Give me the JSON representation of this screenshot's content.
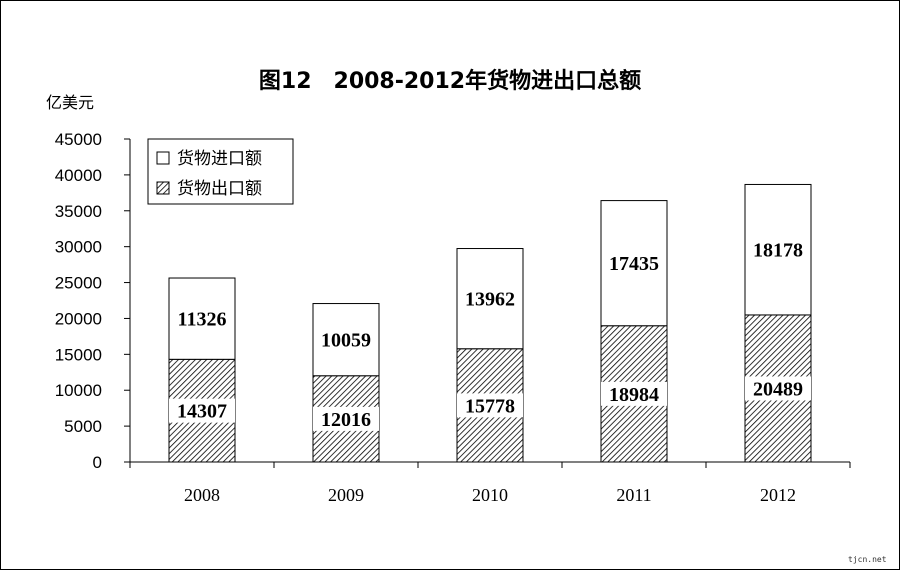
{
  "chart_data": {
    "type": "bar",
    "stacked": true,
    "title": "图12　2008-2012年货物进出口总额",
    "ylabel": "亿美元",
    "xlabel": "",
    "categories": [
      "2008",
      "2009",
      "2010",
      "2011",
      "2012"
    ],
    "ylim": [
      0,
      45000
    ],
    "yticks": [
      0,
      5000,
      10000,
      15000,
      20000,
      25000,
      30000,
      35000,
      40000,
      45000
    ],
    "series": [
      {
        "name": "货物出口额",
        "values": [
          14307,
          12016,
          15778,
          18984,
          20489
        ],
        "fill": "hatched"
      },
      {
        "name": "货物进口额",
        "values": [
          11326,
          10059,
          13962,
          17435,
          18178
        ],
        "fill": "white"
      }
    ],
    "legend_position": "top-left",
    "grid": false
  },
  "watermark": "tjcn.net",
  "colors": {
    "bar_outline": "#000000",
    "hatch": "#000000",
    "background": "#ffffff"
  }
}
